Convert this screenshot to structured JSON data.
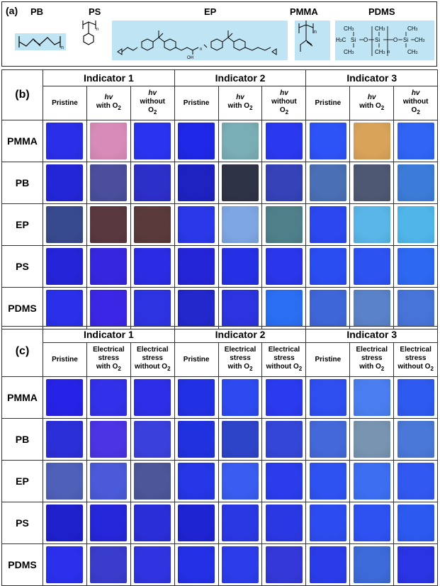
{
  "panel_a": {
    "label": "(a)",
    "polymers": [
      "PB",
      "PS",
      "EP",
      "PMMA",
      "PDMS"
    ],
    "structure_text": {
      "pb_n": "n",
      "ps_n": "n",
      "ep_oh": "OH",
      "ep_n": "n",
      "pmma_n": "n",
      "pdms": {
        "ch3": "CH",
        "three": "3",
        "h3c": "H",
        "c": "C",
        "si": "Si",
        "o": "O",
        "n": "n"
      }
    }
  },
  "panel_b": {
    "label": "(b)",
    "indicators": [
      "Indicator 1",
      "Indicator 2",
      "Indicator 3"
    ],
    "columns": {
      "pristine": "Pristine",
      "hv": "hv",
      "with": "with O",
      "without": "without",
      "o": "O",
      "sub2": "2"
    },
    "rows": [
      {
        "name": "PMMA",
        "colors": [
          "#2a2ee8",
          "#d88bb8",
          "#2a33f0",
          "#1e28e6",
          "#79aeb4",
          "#2a38f0",
          "#2d52f6",
          "#d9a35a",
          "#2f64f5"
        ]
      },
      {
        "name": "PB",
        "colors": [
          "#2326d6",
          "#4a4e9c",
          "#2c2fc8",
          "#1d22c0",
          "#2f3346",
          "#3542b8",
          "#4a6fb4",
          "#4f5872",
          "#3c7cd8"
        ]
      },
      {
        "name": "EP",
        "colors": [
          "#384a8e",
          "#5a3840",
          "#5a3a3a",
          "#2a38ea",
          "#7ea6e2",
          "#4f808a",
          "#2b48f0",
          "#5ab6e8",
          "#50b6ea"
        ]
      },
      {
        "name": "PS",
        "colors": [
          "#2524d8",
          "#3527e0",
          "#2b2be4",
          "#2525d8",
          "#2530e4",
          "#2a36ea",
          "#2a4df2",
          "#2d52f2",
          "#2d68f2"
        ]
      },
      {
        "name": "PDMS",
        "colors": [
          "#2a30ea",
          "#3c26e6",
          "#2c34e2",
          "#2228cc",
          "#2b34de",
          "#2a6ef2",
          "#3f66d8",
          "#5a82c8",
          "#4674d8"
        ]
      }
    ]
  },
  "panel_c": {
    "label": "(c)",
    "indicators": [
      "Indicator 1",
      "Indicator 2",
      "Indicator 3"
    ],
    "columns": {
      "pristine": "Pristine",
      "electrical": "Electrical",
      "stress": "stress",
      "stress_with": "with O",
      "stress_without": "stress",
      "without": "without O",
      "sub2": "2"
    },
    "rows": [
      {
        "name": "PMMA",
        "colors": [
          "#2622e6",
          "#3230e8",
          "#2e2ee8",
          "#2230e4",
          "#2c4af0",
          "#2a3aee",
          "#2e4ef0",
          "#4a7ef0",
          "#2e5af0"
        ]
      },
      {
        "name": "PB",
        "colors": [
          "#2b2fd8",
          "#4a34e4",
          "#3a40dc",
          "#2032e0",
          "#2e44c8",
          "#3446d8",
          "#4468d8",
          "#7894b0",
          "#4a78d8"
        ]
      },
      {
        "name": "EP",
        "colors": [
          "#4e60b8",
          "#4a5ad8",
          "#4c5698",
          "#2436e6",
          "#3a5cf0",
          "#2a3cec",
          "#2e52f2",
          "#3d6ef2",
          "#3258f2"
        ]
      },
      {
        "name": "PS",
        "colors": [
          "#1e20cc",
          "#2626da",
          "#2a2ed8",
          "#1e24d2",
          "#2a38e4",
          "#2a38e4",
          "#2c4cf0",
          "#2e52f2",
          "#2c5af0"
        ]
      },
      {
        "name": "PDMS",
        "colors": [
          "#2a30ec",
          "#3a3ccc",
          "#3034e0",
          "#2430e6",
          "#2c3cea",
          "#3438d8",
          "#2a3cea",
          "#3c6ad8",
          "#2a34e4"
        ]
      }
    ]
  }
}
